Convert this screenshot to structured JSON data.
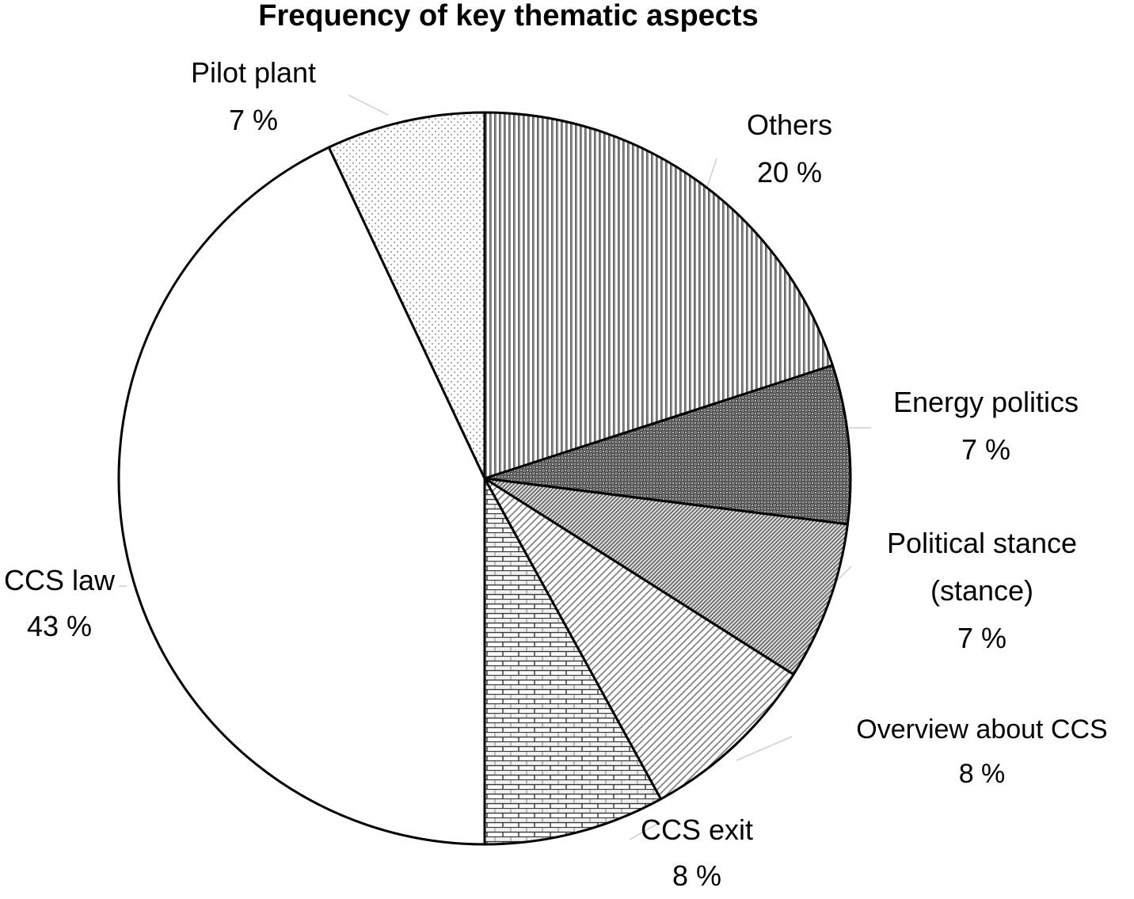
{
  "chart_data": {
    "type": "pie",
    "title": "Frequency of key thematic aspects",
    "start_angle_deg": 0,
    "direction": "clockwise",
    "slices": [
      {
        "label_lines": [
          "Others"
        ],
        "value_label": "20 %",
        "value": 20,
        "pattern": "vertical-stripes"
      },
      {
        "label_lines": [
          "Energy politics"
        ],
        "value_label": "7 %",
        "value": 7,
        "pattern": "dark-checker"
      },
      {
        "label_lines": [
          "Political stance",
          "(stance)"
        ],
        "value_label": "7 %",
        "value": 7,
        "pattern": "dense-diagonal"
      },
      {
        "label_lines": [
          "Overview about CCS"
        ],
        "value_label": "8 %",
        "value": 8,
        "pattern": "sparse-diagonal"
      },
      {
        "label_lines": [
          "CCS exit"
        ],
        "value_label": "8 %",
        "value": 8,
        "pattern": "brick"
      },
      {
        "label_lines": [
          "CCS law"
        ],
        "value_label": "43 %",
        "value": 43,
        "pattern": "none"
      },
      {
        "label_lines": [
          "Pilot plant"
        ],
        "value_label": "7 %",
        "value": 7,
        "pattern": "dots"
      }
    ],
    "legend": "none",
    "colors": {
      "stroke": "#000000",
      "background": "#ffffff",
      "leader": "#cfcfcf"
    }
  }
}
